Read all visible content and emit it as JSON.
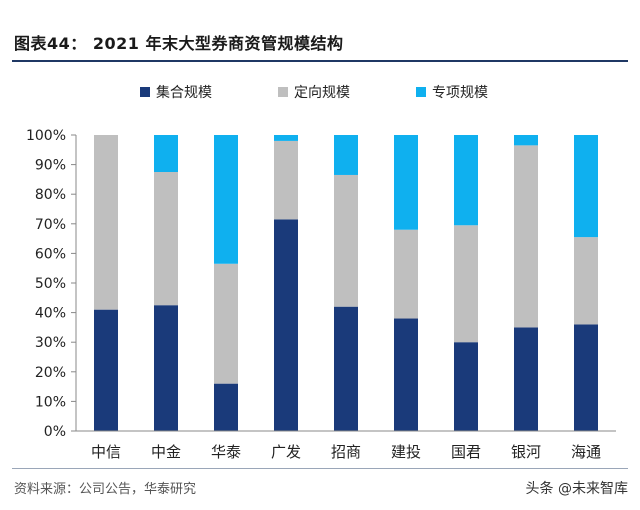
{
  "figure_title": "图表44： 2021 年末大型券商资管规模结构",
  "source": "资料来源：公司公告，华泰研究",
  "watermark": "头条 @未来智库",
  "chart_data": {
    "type": "bar",
    "stacked": true,
    "title": "",
    "xlabel": "",
    "ylabel": "",
    "ylim": [
      0,
      100
    ],
    "yticks": [
      "0%",
      "10%",
      "20%",
      "30%",
      "40%",
      "50%",
      "60%",
      "70%",
      "80%",
      "90%",
      "100%"
    ],
    "legend_position": "top",
    "categories": [
      "中信",
      "中金",
      "华泰",
      "广发",
      "招商",
      "建投",
      "国君",
      "银河",
      "海通"
    ],
    "series": [
      {
        "name": "集合规模",
        "color": "#1a3a7a",
        "values": [
          41,
          42.5,
          16,
          71.5,
          42,
          38,
          30,
          35,
          36
        ]
      },
      {
        "name": "定向规模",
        "color": "#bfbfbf",
        "values": [
          59,
          45,
          40.5,
          26.5,
          44.5,
          30,
          39.5,
          61.5,
          29.5
        ]
      },
      {
        "name": "专项规模",
        "color": "#0fb0ef",
        "values": [
          0,
          12.5,
          43.5,
          2,
          13.5,
          32,
          30.5,
          3.5,
          34.5
        ]
      }
    ]
  }
}
